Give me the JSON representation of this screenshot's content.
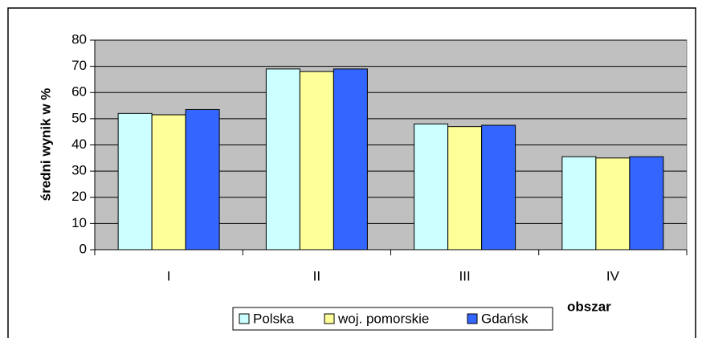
{
  "chart_data": {
    "type": "bar",
    "categories": [
      "I",
      "II",
      "III",
      "IV"
    ],
    "series": [
      {
        "name": "Polska",
        "color": "#ccffff",
        "values": [
          52,
          69,
          48,
          35.5
        ]
      },
      {
        "name": "woj. pomorskie",
        "color": "#ffff99",
        "values": [
          51.5,
          68,
          47,
          35
        ]
      },
      {
        "name": "Gdańsk",
        "color": "#3366ff",
        "values": [
          53.5,
          69,
          47.5,
          35.5
        ]
      }
    ],
    "ylabel": "średni wynik w %",
    "xlabel": "obszar",
    "ylim": [
      0,
      80
    ],
    "yticks": [
      0,
      10,
      20,
      30,
      40,
      50,
      60,
      70,
      80
    ],
    "grid": true,
    "legend": "bottom"
  }
}
